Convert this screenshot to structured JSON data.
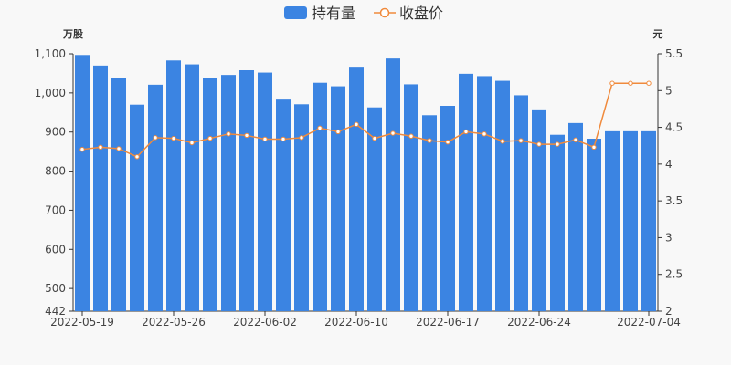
{
  "chart_data": {
    "type": "bar+line",
    "legend": [
      "持有量",
      "收盘价"
    ],
    "legend_position": "top-center",
    "colors": {
      "bar": "#3b84e2",
      "line": "#f08a3c",
      "axis": "#333333"
    },
    "left_unit": "万股",
    "right_unit": "元",
    "x": [
      "2022-05-19",
      "2022-05-20",
      "2022-05-23",
      "2022-05-24",
      "2022-05-25",
      "2022-05-26",
      "2022-05-27",
      "2022-05-30",
      "2022-05-31",
      "2022-06-01",
      "2022-06-02",
      "2022-06-06",
      "2022-06-07",
      "2022-06-08",
      "2022-06-09",
      "2022-06-10",
      "2022-06-13",
      "2022-06-14",
      "2022-06-15",
      "2022-06-16",
      "2022-06-17",
      "2022-06-20",
      "2022-06-21",
      "2022-06-22",
      "2022-06-23",
      "2022-06-24",
      "2022-06-27",
      "2022-06-28",
      "2022-06-29",
      "2022-06-30",
      "2022-07-01",
      "2022-07-04"
    ],
    "x_tick_labels": [
      "2022-05-19",
      "2022-05-26",
      "2022-06-02",
      "2022-06-10",
      "2022-06-17",
      "2022-06-24",
      "2022-07-04"
    ],
    "series": [
      {
        "name": "持有量",
        "type": "bar",
        "axis": "left",
        "values": [
          1097,
          1070,
          1039,
          970,
          1021,
          1083,
          1073,
          1037,
          1046,
          1058,
          1052,
          983,
          971,
          1026,
          1017,
          1067,
          963,
          1088,
          1022,
          943,
          967,
          1049,
          1043,
          1031,
          994,
          958,
          893,
          923,
          883,
          902,
          902,
          902
        ]
      },
      {
        "name": "收盘价",
        "type": "line",
        "axis": "right",
        "values": [
          4.2,
          4.23,
          4.21,
          4.1,
          4.36,
          4.35,
          4.29,
          4.35,
          4.41,
          4.39,
          4.34,
          4.34,
          4.36,
          4.49,
          4.44,
          4.54,
          4.35,
          4.42,
          4.38,
          4.32,
          4.3,
          4.44,
          4.41,
          4.31,
          4.32,
          4.27,
          4.27,
          4.33,
          4.23,
          5.1,
          5.1,
          5.1
        ]
      }
    ],
    "y_left": {
      "min": 442,
      "max": 1100,
      "ticks": [
        442,
        500,
        600,
        700,
        800,
        900,
        "1,000",
        "1,100"
      ]
    },
    "y_right": {
      "min": 2,
      "max": 5.5,
      "ticks": [
        2,
        2.5,
        3,
        3.5,
        4,
        4.5,
        5,
        5.5
      ]
    },
    "grid": false
  }
}
